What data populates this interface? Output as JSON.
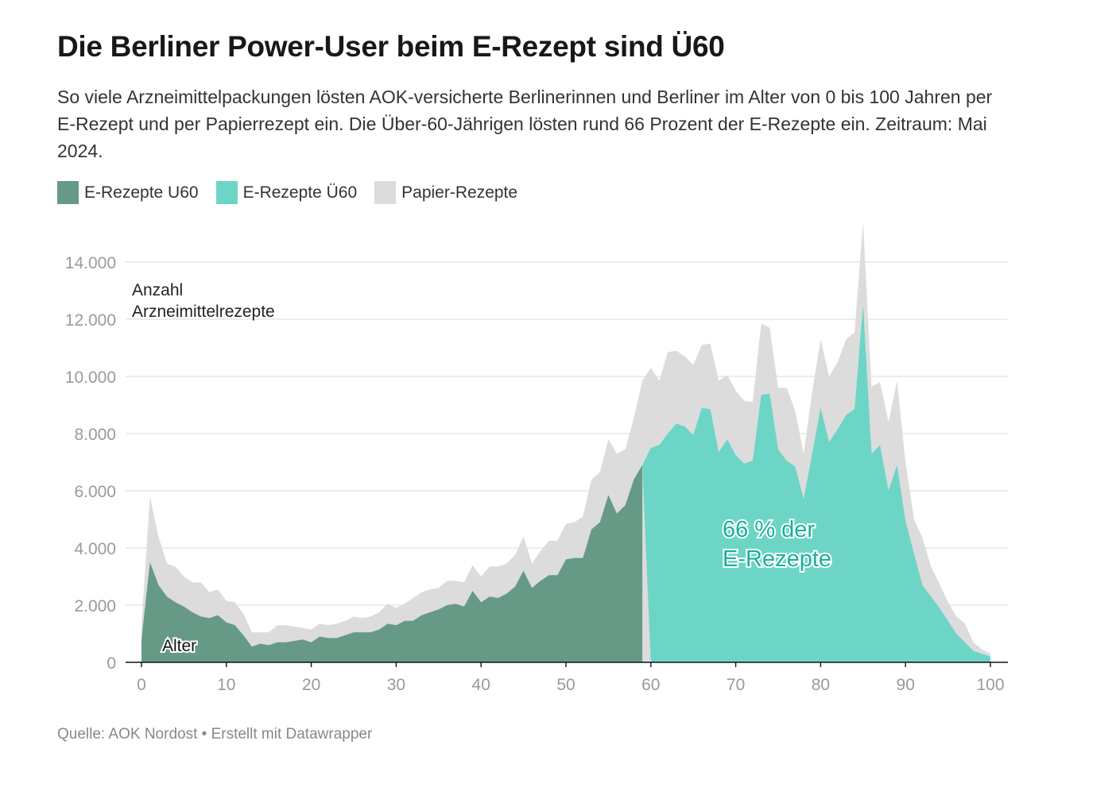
{
  "title": "Die Berliner Power-User beim E-Rezept sind Ü60",
  "subtitle": "So viele Arzneimittelpackungen lösten AOK-versicherte Berlinerinnen und Berliner im Alter von 0 bis 100 Jahren per E-Rezept und per Papierrezept ein. Die Über-60-Jährigen lösten rund 66 Prozent der E-Rezepte ein. Zeitraum: Mai 2024.",
  "legend": [
    {
      "label": "E-Rezepte U60",
      "color": "#679a86"
    },
    {
      "label": "E-Rezepte Ü60",
      "color": "#6dd5c6"
    },
    {
      "label": "Papier-Rezepte",
      "color": "#dcdcdc"
    }
  ],
  "footer": "Quelle: AOK Nordost • Erstellt mit Datawrapper",
  "chart_data": {
    "type": "area",
    "stacked": true,
    "xlabel": "Alter",
    "ylabel": "Anzahl Arzneimittelrezepte",
    "annotation": {
      "line1": "66 % der",
      "line2": "E-Rezepte",
      "color": "#17b19c"
    },
    "xlim": [
      0,
      100
    ],
    "ylim": [
      0,
      15000
    ],
    "x_ticks": [
      0,
      10,
      20,
      30,
      40,
      50,
      60,
      70,
      80,
      90,
      100
    ],
    "y_ticks": [
      0,
      2000,
      4000,
      6000,
      8000,
      10000,
      12000,
      14000
    ],
    "y_tick_labels": [
      "0",
      "2.000",
      "4.000",
      "6.000",
      "8.000",
      "10.000",
      "12.000",
      "14.000"
    ],
    "grid": true,
    "legend_position": "top-left",
    "x": [
      0,
      1,
      2,
      3,
      4,
      5,
      6,
      7,
      8,
      9,
      10,
      11,
      12,
      13,
      14,
      15,
      16,
      17,
      18,
      19,
      20,
      21,
      22,
      23,
      24,
      25,
      26,
      27,
      28,
      29,
      30,
      31,
      32,
      33,
      34,
      35,
      36,
      37,
      38,
      39,
      40,
      41,
      42,
      43,
      44,
      45,
      46,
      47,
      48,
      49,
      50,
      51,
      52,
      53,
      54,
      55,
      56,
      57,
      58,
      59,
      60,
      61,
      62,
      63,
      64,
      65,
      66,
      67,
      68,
      69,
      70,
      71,
      72,
      73,
      74,
      75,
      76,
      77,
      78,
      79,
      80,
      81,
      82,
      83,
      84,
      85,
      86,
      87,
      88,
      89,
      90,
      91,
      92,
      93,
      94,
      95,
      96,
      97,
      98,
      99,
      100
    ],
    "series": [
      {
        "name": "E-Rezepte U60",
        "color": "#679a86",
        "values": [
          800,
          3500,
          2700,
          2300,
          2100,
          1950,
          1750,
          1600,
          1550,
          1650,
          1400,
          1300,
          950,
          550,
          650,
          600,
          700,
          700,
          750,
          800,
          700,
          900,
          850,
          850,
          950,
          1050,
          1050,
          1050,
          1150,
          1350,
          1300,
          1450,
          1450,
          1650,
          1750,
          1850,
          2000,
          2050,
          1950,
          2500,
          2100,
          2300,
          2250,
          2400,
          2650,
          3200,
          2600,
          2850,
          3050,
          3050,
          3600,
          3650,
          3650,
          4650,
          4900,
          5850,
          5200,
          5500,
          6400,
          6900,
          null,
          null,
          null,
          null,
          null,
          null,
          null,
          null,
          null,
          null,
          null,
          null,
          null,
          null,
          null,
          null,
          null,
          null,
          null,
          null,
          null,
          null,
          null,
          null,
          null,
          null,
          null,
          null,
          null,
          null,
          null,
          null,
          null,
          null,
          null,
          null,
          null,
          null,
          null,
          null,
          null
        ]
      },
      {
        "name": "E-Rezepte Ü60",
        "color": "#6dd5c6",
        "values": [
          null,
          null,
          null,
          null,
          null,
          null,
          null,
          null,
          null,
          null,
          null,
          null,
          null,
          null,
          null,
          null,
          null,
          null,
          null,
          null,
          null,
          null,
          null,
          null,
          null,
          null,
          null,
          null,
          null,
          null,
          null,
          null,
          null,
          null,
          null,
          null,
          null,
          null,
          null,
          null,
          null,
          null,
          null,
          null,
          null,
          null,
          null,
          null,
          null,
          null,
          null,
          null,
          null,
          null,
          null,
          null,
          null,
          null,
          null,
          null,
          7500,
          7600,
          8000,
          8350,
          8250,
          7950,
          8900,
          8850,
          7350,
          7800,
          7250,
          6950,
          7050,
          9350,
          9400,
          7450,
          7050,
          6850,
          5700,
          7300,
          8900,
          7700,
          8150,
          8650,
          8850,
          12500,
          7300,
          7600,
          6000,
          6900,
          4950,
          3800,
          2700,
          2300,
          1900,
          1450,
          1000,
          700,
          400,
          300,
          200
        ]
      },
      {
        "name": "Papier-Rezepte",
        "color": "#dcdcdc",
        "total": [
          1300,
          5800,
          4400,
          3450,
          3350,
          3000,
          2800,
          2800,
          2450,
          2550,
          2150,
          2100,
          1700,
          1050,
          1050,
          1050,
          1300,
          1300,
          1250,
          1200,
          1150,
          1350,
          1300,
          1350,
          1450,
          1600,
          1550,
          1600,
          1750,
          2050,
          1900,
          2050,
          2250,
          2450,
          2550,
          2600,
          2850,
          2850,
          2800,
          3400,
          3000,
          3350,
          3350,
          3450,
          3750,
          4400,
          3450,
          3900,
          4250,
          4250,
          4850,
          4900,
          5100,
          6400,
          6650,
          7800,
          7300,
          7450,
          8550,
          9850,
          10300,
          9850,
          10850,
          10900,
          10700,
          10400,
          11100,
          11150,
          9850,
          10050,
          9500,
          9150,
          9100,
          11850,
          11700,
          9600,
          9600,
          8800,
          7300,
          9450,
          11300,
          10000,
          10500,
          11300,
          11550,
          15400,
          9650,
          9800,
          8400,
          9850,
          7000,
          5000,
          4350,
          3350,
          2750,
          2100,
          1600,
          1350,
          700,
          450,
          300
        ]
      }
    ]
  }
}
